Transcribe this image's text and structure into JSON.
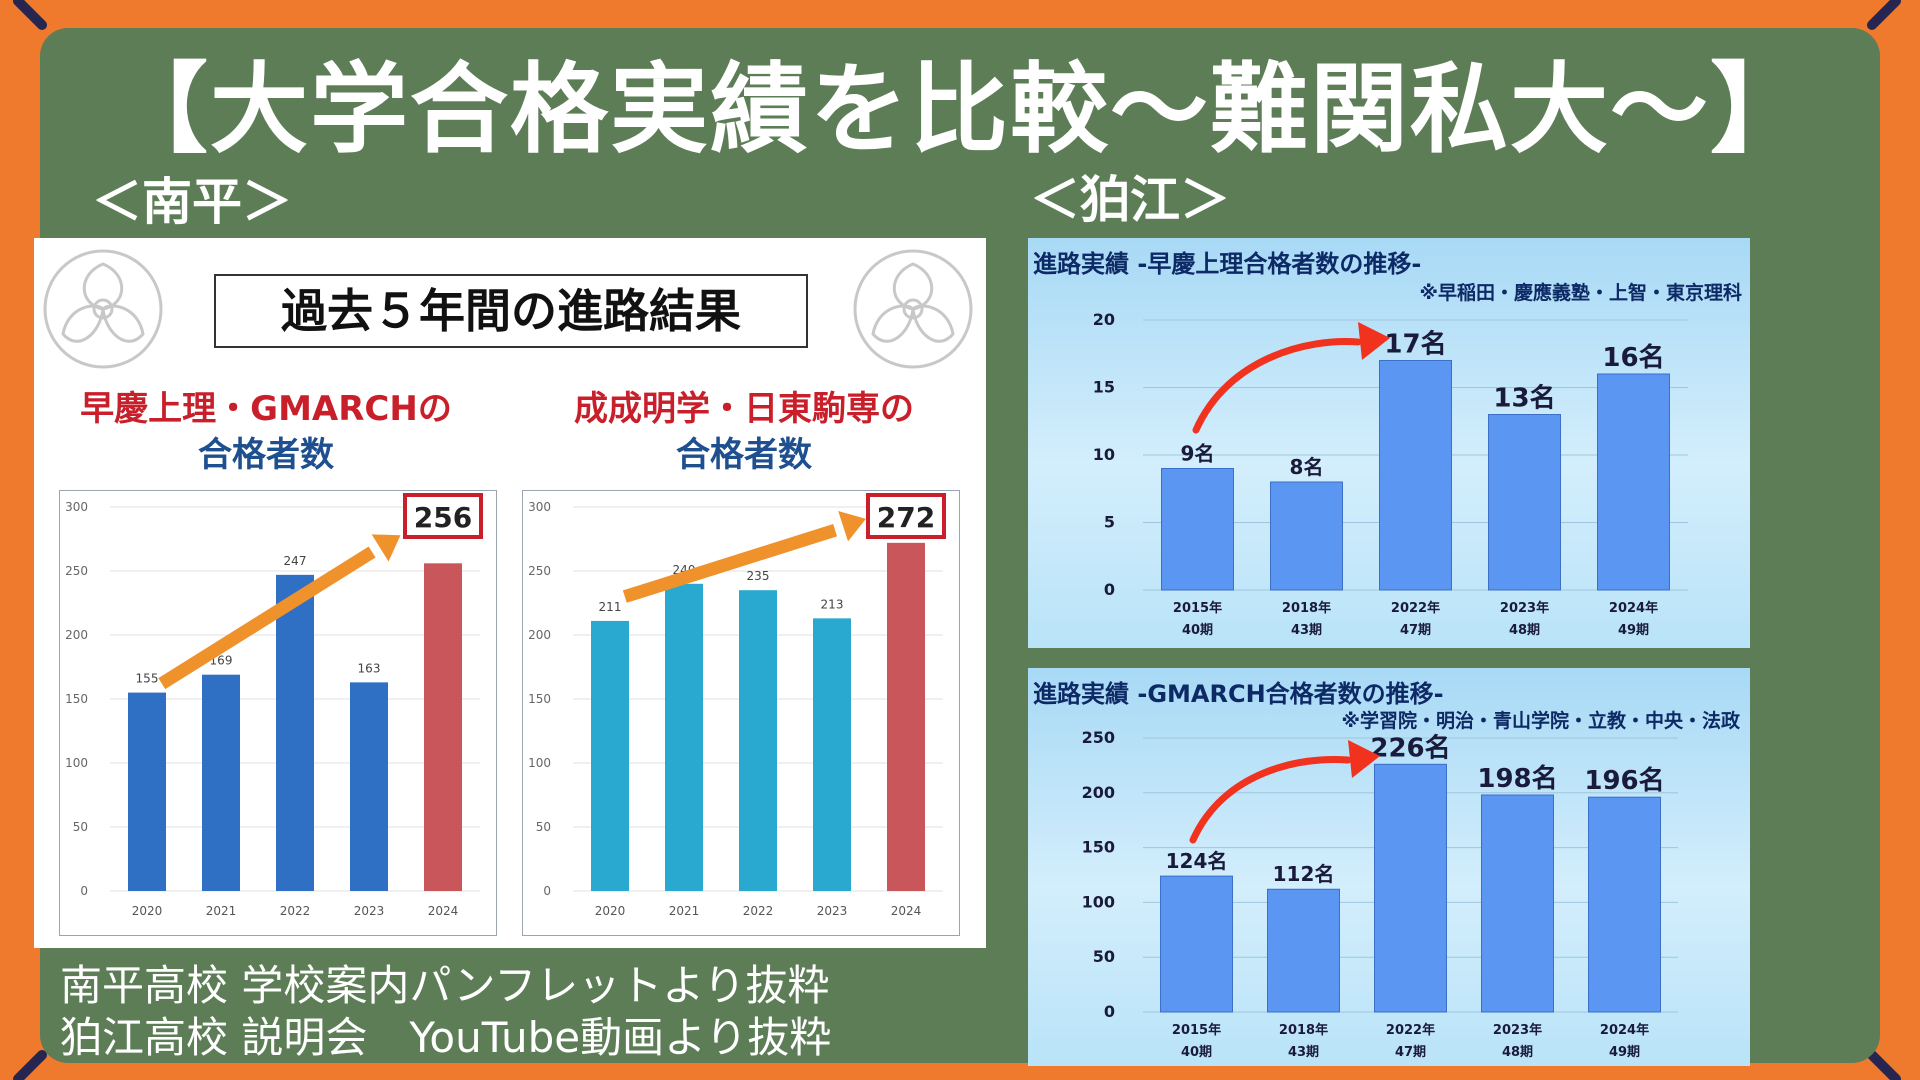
{
  "title": "【大学合格実績を比較～難関私大～】",
  "left_section_label": "＜南平＞",
  "right_section_label": "＜狛江＞",
  "minamidaira": {
    "boxed_title": "過去５年間の進路結果",
    "chart1_head_red": "早慶上理・GMARCHの",
    "chart1_head_blue": "合格者数",
    "chart2_head_red": "成成明学・日東駒専の",
    "chart2_head_blue": "合格者数"
  },
  "komae": {
    "chart1_head": "進路実績 -早慶上理合格者数の推移-",
    "chart1_note": "※早稲田・慶應義塾・上智・東京理科",
    "chart2_head": "進路実績 -GMARCH合格者数の推移-",
    "chart2_note": "※学習院・明治・青山学院・立教・中央・法政"
  },
  "captions": [
    "南平高校 学校案内パンフレットより抜粋",
    "狛江高校 説明会　YouTube動画より抜粋"
  ],
  "colors": {
    "accent_orange": "#ef7a2e",
    "board_green": "#5d7d57",
    "highlight_red": "#c9565a",
    "callout_red": "#c81f2b"
  },
  "chart_data": [
    {
      "type": "bar",
      "categories": [
        "2020",
        "2021",
        "2022",
        "2023",
        "2024"
      ],
      "values": [
        155,
        169,
        247,
        163,
        256
      ],
      "data_labels": [
        "155",
        "169",
        "247",
        "163",
        "256"
      ],
      "highlight_index": 4,
      "ylim": [
        0,
        300
      ],
      "yticks": [
        0,
        50,
        100,
        150,
        200,
        250,
        300
      ],
      "bar_color": "#2f6fc4",
      "highlight_color": "#c9565a",
      "callout": "256"
    },
    {
      "type": "bar",
      "categories": [
        "2020",
        "2021",
        "2022",
        "2023",
        "2024"
      ],
      "values": [
        211,
        240,
        235,
        213,
        272
      ],
      "data_labels": [
        "211",
        "240",
        "235",
        "213",
        "272"
      ],
      "highlight_index": 4,
      "ylim": [
        0,
        300
      ],
      "yticks": [
        0,
        50,
        100,
        150,
        200,
        250,
        300
      ],
      "bar_color": "#29a9cf",
      "highlight_color": "#c9565a",
      "callout": "272"
    },
    {
      "type": "bar",
      "categories": [
        "2015年",
        "2018年",
        "2022年",
        "2023年",
        "2024年"
      ],
      "sub_categories": [
        "40期",
        "43期",
        "47期",
        "48期",
        "49期"
      ],
      "values": [
        9,
        8,
        17,
        13,
        16
      ],
      "data_labels": [
        "9名",
        "8名",
        "17名",
        "13名",
        "16名"
      ],
      "ylim": [
        0,
        20
      ],
      "yticks": [
        0,
        5,
        10,
        15,
        20
      ],
      "bar_color": "#5b96f2"
    },
    {
      "type": "bar",
      "categories": [
        "2015年",
        "2018年",
        "2022年",
        "2023年",
        "2024年"
      ],
      "sub_categories": [
        "40期",
        "43期",
        "47期",
        "48期",
        "49期"
      ],
      "values": [
        124,
        112,
        226,
        198,
        196
      ],
      "data_labels": [
        "124名",
        "112名",
        "226名",
        "198名",
        "196名"
      ],
      "ylim": [
        0,
        250
      ],
      "yticks": [
        0,
        50,
        100,
        150,
        200,
        250
      ],
      "bar_color": "#5b96f2"
    }
  ]
}
